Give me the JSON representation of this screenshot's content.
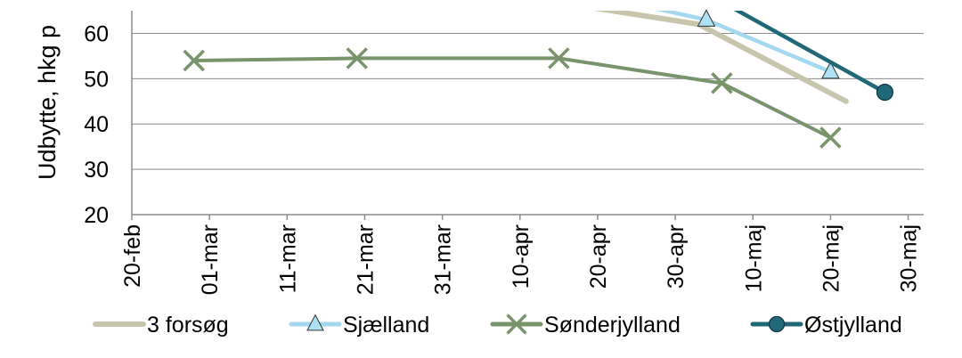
{
  "chart_data": {
    "type": "line",
    "title": "",
    "xlabel": "",
    "ylabel": "Udbytte, hkg p",
    "x_ticks": [
      "20-feb",
      "01-mar",
      "11-mar",
      "21-mar",
      "31-mar",
      "10-apr",
      "20-apr",
      "30-apr",
      "10-maj",
      "20-maj",
      "30-maj"
    ],
    "xlim": [
      "20-feb",
      "01-jun"
    ],
    "y_ticks": [
      20,
      30,
      40,
      50,
      60
    ],
    "ylim": [
      20,
      65
    ],
    "grid": "horizontal",
    "legend": "bottom",
    "series": [
      {
        "name": "3 forsøg",
        "color": "#c8c5ad",
        "marker": "none",
        "points": [
          {
            "x": "18-apr",
            "y": 66
          },
          {
            "x": "03-maj",
            "y": 62
          },
          {
            "x": "22-maj",
            "y": 45
          }
        ]
      },
      {
        "name": "Sjælland",
        "color": "#a4d8f0",
        "marker": "triangle",
        "marker_fill": "#aee1f5",
        "points": [
          {
            "x": "26-apr",
            "y": 66
          },
          {
            "x": "04-maj",
            "y": 63
          },
          {
            "x": "20-maj",
            "y": 51.5
          }
        ]
      },
      {
        "name": "Sønderjylland",
        "color": "#77946b",
        "marker": "x",
        "points": [
          {
            "x": "28-feb",
            "y": 54
          },
          {
            "x": "20-mar",
            "y": 54.5
          },
          {
            "x": "15-apr",
            "y": 54.5
          },
          {
            "x": "06-maj",
            "y": 49
          },
          {
            "x": "20-maj",
            "y": 37
          }
        ]
      },
      {
        "name": "Østjylland",
        "color": "#1f6878",
        "marker": "circle",
        "marker_fill": "#1f6878",
        "points": [
          {
            "x": "07-maj",
            "y": 66
          },
          {
            "x": "27-maj",
            "y": 47
          }
        ]
      }
    ]
  }
}
